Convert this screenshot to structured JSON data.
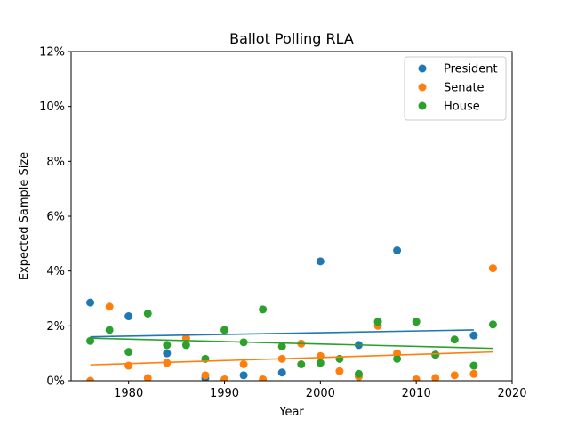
{
  "chart_data": {
    "type": "scatter",
    "title": "Ballot Polling RLA",
    "xlabel": "Year",
    "ylabel": "Expected Sample Size",
    "xlim": [
      1974,
      2020
    ],
    "ylim": [
      0,
      12
    ],
    "x_ticks": [
      1980,
      1990,
      2000,
      2010,
      2020
    ],
    "y_ticks": [
      0,
      2,
      4,
      6,
      8,
      10,
      12
    ],
    "y_tick_labels": [
      "0%",
      "2%",
      "4%",
      "6%",
      "8%",
      "10%",
      "12%"
    ],
    "grid": false,
    "legend_position": "top-right",
    "series": [
      {
        "name": "President",
        "color": "#1f77b4",
        "points": [
          [
            1976,
            2.85
          ],
          [
            1980,
            2.35
          ],
          [
            1984,
            1.0
          ],
          [
            1988,
            0.1
          ],
          [
            1992,
            0.2
          ],
          [
            1996,
            0.3
          ],
          [
            2000,
            4.35
          ],
          [
            2004,
            1.3
          ],
          [
            2008,
            4.75
          ],
          [
            2012,
            0.95
          ],
          [
            2016,
            1.65
          ]
        ],
        "trend": [
          [
            1976,
            1.6
          ],
          [
            2016,
            1.85
          ]
        ]
      },
      {
        "name": "Senate",
        "color": "#ff7f0e",
        "points": [
          [
            1976,
            0.0
          ],
          [
            1978,
            2.7
          ],
          [
            1980,
            0.55
          ],
          [
            1982,
            0.1
          ],
          [
            1984,
            0.65
          ],
          [
            1986,
            1.55
          ],
          [
            1988,
            0.2
          ],
          [
            1990,
            0.05
          ],
          [
            1992,
            0.6
          ],
          [
            1994,
            0.05
          ],
          [
            1996,
            0.8
          ],
          [
            1998,
            1.35
          ],
          [
            2000,
            0.9
          ],
          [
            2002,
            0.35
          ],
          [
            2004,
            0.15
          ],
          [
            2006,
            2.0
          ],
          [
            2008,
            1.0
          ],
          [
            2010,
            0.05
          ],
          [
            2012,
            0.1
          ],
          [
            2014,
            0.2
          ],
          [
            2016,
            0.25
          ],
          [
            2018,
            4.1
          ]
        ],
        "trend": [
          [
            1976,
            0.58
          ],
          [
            2018,
            1.05
          ]
        ]
      },
      {
        "name": "House",
        "color": "#2ca02c",
        "points": [
          [
            1976,
            1.45
          ],
          [
            1978,
            1.85
          ],
          [
            1980,
            1.05
          ],
          [
            1982,
            2.45
          ],
          [
            1984,
            1.3
          ],
          [
            1986,
            1.3
          ],
          [
            1988,
            0.8
          ],
          [
            1990,
            1.85
          ],
          [
            1992,
            1.4
          ],
          [
            1994,
            2.6
          ],
          [
            1996,
            1.25
          ],
          [
            1998,
            0.6
          ],
          [
            2000,
            0.65
          ],
          [
            2002,
            0.8
          ],
          [
            2004,
            0.25
          ],
          [
            2006,
            2.15
          ],
          [
            2008,
            0.8
          ],
          [
            2010,
            2.15
          ],
          [
            2012,
            0.95
          ],
          [
            2014,
            1.5
          ],
          [
            2016,
            0.55
          ],
          [
            2018,
            2.05
          ]
        ],
        "trend": [
          [
            1976,
            1.55
          ],
          [
            2018,
            1.18
          ]
        ]
      }
    ]
  }
}
